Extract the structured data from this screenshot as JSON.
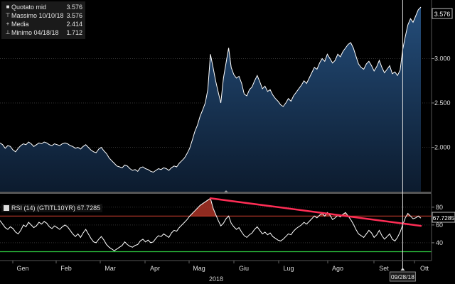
{
  "legend": {
    "rows": [
      {
        "icon": "filled-square-icon",
        "label": "Quotato mid",
        "value": "3.576"
      },
      {
        "icon": "max-marker-icon",
        "label": "Massimo 10/10/18",
        "value": "3.576"
      },
      {
        "icon": "cross-marker-icon",
        "label": "Media",
        "value": "2.414"
      },
      {
        "icon": "min-marker-icon",
        "label": "Minimo 04/18/18",
        "value": "1.712"
      }
    ]
  },
  "rsi_legend": {
    "label": "RSI (14) (GTITL10YR)",
    "value": "67.7285"
  },
  "last_price_label": "3.576",
  "rsi_last_label": "67.7285",
  "cursor_date_label": "09/28/18",
  "year_label": "2018",
  "colors": {
    "background": "#000000",
    "price_line": "#ffffff",
    "price_fill_top": "#244d7a",
    "price_fill_bottom": "#0c1b2e",
    "rsi_line": "#ffffff",
    "overbought": "#c0392b",
    "oversold": "#2ecc40",
    "trendline": "#ff2d55"
  },
  "chart_data": [
    {
      "type": "area",
      "title": "",
      "series": [
        {
          "name": "Quotato mid",
          "values": [
            2.05,
            2.03,
            1.99,
            2.02,
            2.01,
            1.97,
            1.95,
            1.99,
            2.02,
            2.04,
            2.03,
            2.06,
            2.04,
            2.01,
            2.03,
            2.05,
            2.04,
            2.06,
            2.05,
            2.03,
            2.02,
            2.04,
            2.03,
            2.02,
            2.04,
            2.05,
            2.04,
            2.02,
            2.01,
            1.99,
            2.0,
            1.98,
            2.01,
            2.03,
            2.0,
            1.97,
            1.95,
            1.94,
            1.98,
            2.0,
            1.96,
            1.93,
            1.88,
            1.85,
            1.82,
            1.79,
            1.78,
            1.77,
            1.8,
            1.79,
            1.76,
            1.74,
            1.75,
            1.73,
            1.77,
            1.78,
            1.76,
            1.75,
            1.73,
            1.72,
            1.74,
            1.76,
            1.75,
            1.77,
            1.76,
            1.74,
            1.77,
            1.79,
            1.78,
            1.82,
            1.85,
            1.88,
            1.93,
            1.99,
            2.08,
            2.18,
            2.25,
            2.35,
            2.42,
            2.5,
            2.65,
            3.05,
            2.9,
            2.75,
            2.62,
            2.5,
            2.78,
            2.95,
            3.12,
            2.9,
            2.82,
            2.78,
            2.8,
            2.72,
            2.6,
            2.58,
            2.65,
            2.68,
            2.75,
            2.81,
            2.74,
            2.66,
            2.69,
            2.63,
            2.65,
            2.59,
            2.55,
            2.52,
            2.48,
            2.46,
            2.5,
            2.55,
            2.52,
            2.58,
            2.62,
            2.66,
            2.7,
            2.75,
            2.72,
            2.78,
            2.84,
            2.9,
            2.88,
            2.95,
            3.0,
            2.97,
            3.05,
            3.0,
            2.95,
            2.98,
            3.05,
            3.02,
            3.08,
            3.12,
            3.16,
            3.18,
            3.12,
            3.03,
            2.94,
            2.9,
            2.88,
            2.94,
            2.97,
            2.92,
            2.86,
            2.91,
            2.98,
            2.9,
            2.84,
            2.88,
            2.92,
            2.83,
            2.85,
            2.81,
            2.87,
            3.1,
            3.25,
            3.38,
            3.45,
            3.41,
            3.48,
            3.55,
            3.58
          ]
        }
      ],
      "ylim": [
        1.5,
        3.66
      ],
      "y_ticks": [
        "2.000",
        "2.500",
        "3.000"
      ],
      "x_ticks": [
        "Gen",
        "Feb",
        "Mar",
        "Apr",
        "Mag",
        "Giu",
        "Lug",
        "Ago",
        "Set",
        "Ott"
      ],
      "grid": true
    },
    {
      "type": "line",
      "title": "RSI (14) (GTITL10YR)",
      "series": [
        {
          "name": "RSI (14) (GTITL10YR)",
          "values": [
            65,
            61,
            57,
            55,
            58,
            56,
            52,
            50,
            54,
            60,
            58,
            63,
            60,
            57,
            59,
            63,
            61,
            64,
            62,
            58,
            56,
            59,
            57,
            55,
            58,
            60,
            58,
            54,
            50,
            47,
            50,
            46,
            51,
            55,
            50,
            45,
            41,
            40,
            44,
            47,
            43,
            38,
            35,
            33,
            31,
            33,
            35,
            37,
            41,
            38,
            36,
            35,
            37,
            38,
            42,
            44,
            41,
            43,
            40,
            41,
            45,
            48,
            47,
            50,
            48,
            46,
            51,
            54,
            53,
            57,
            60,
            63,
            66,
            70,
            73,
            76,
            79,
            82,
            84,
            86,
            88,
            90,
            79,
            72,
            65,
            59,
            62,
            67,
            70,
            62,
            58,
            55,
            57,
            52,
            48,
            46,
            49,
            51,
            55,
            58,
            54,
            50,
            52,
            49,
            51,
            47,
            45,
            43,
            42,
            44,
            47,
            50,
            49,
            53,
            56,
            58,
            60,
            63,
            61,
            64,
            67,
            70,
            68,
            71,
            73,
            70,
            74,
            71,
            66,
            68,
            71,
            69,
            72,
            74,
            70,
            66,
            61,
            55,
            50,
            48,
            46,
            50,
            54,
            51,
            46,
            49,
            54,
            48,
            44,
            47,
            50,
            44,
            42,
            46,
            52,
            60,
            68,
            73,
            70,
            67,
            68,
            70,
            67.73
          ]
        }
      ],
      "ylim": [
        20,
        95
      ],
      "y_ticks": [
        "40",
        "60",
        "80"
      ],
      "overbought": 70,
      "oversold": 30,
      "trendline": {
        "start_index": 81,
        "start_value": 90,
        "end_index": 162,
        "end_value": 59
      }
    }
  ]
}
